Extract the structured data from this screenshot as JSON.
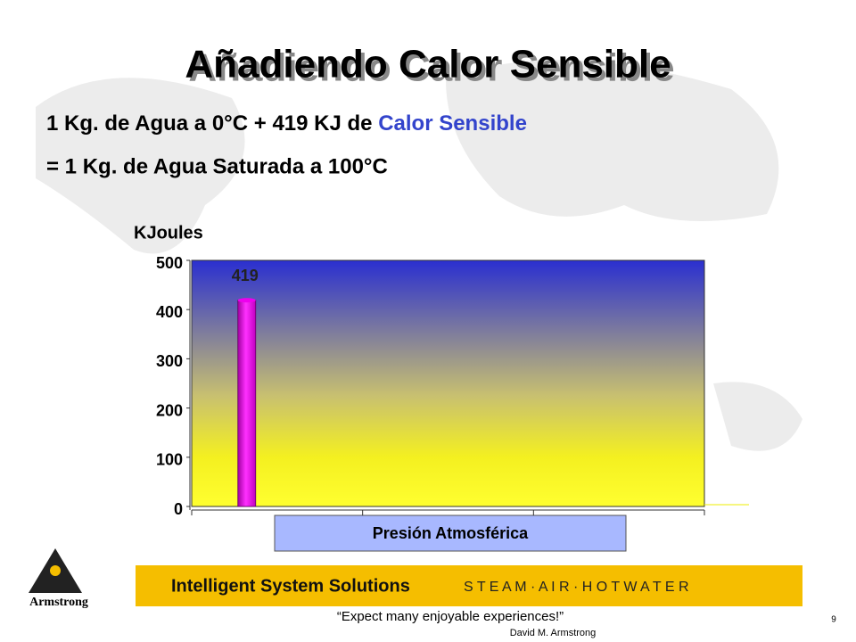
{
  "slide": {
    "title": "Añadiendo Calor Sensible",
    "line1": "1 Kg. de Agua a 0°C + 419 KJ de",
    "line1_highlight": "Calor Sensible",
    "line2": "= 1 Kg. de Agua Saturada a 100°C",
    "footer_band": "Intelligent System Solutions",
    "footer_tagline": "S T E A M · A I R · H O T  W A T E R",
    "quote": "“Expect many enjoyable experiences!”",
    "author": "David M. Armstrong",
    "logo": "Armstrong",
    "page": "9"
  },
  "chart_data": {
    "type": "bar",
    "y_label": "KJoules",
    "x_label": "Presión Atmosférica",
    "categories": [
      null,
      null,
      null
    ],
    "values": [
      419,
      null,
      null
    ],
    "value_labels": [
      "419",
      null,
      null
    ],
    "color": "#ee00ee",
    "ylim": [
      0,
      500
    ],
    "yticks": [
      0,
      100,
      200,
      300,
      400,
      500
    ]
  }
}
